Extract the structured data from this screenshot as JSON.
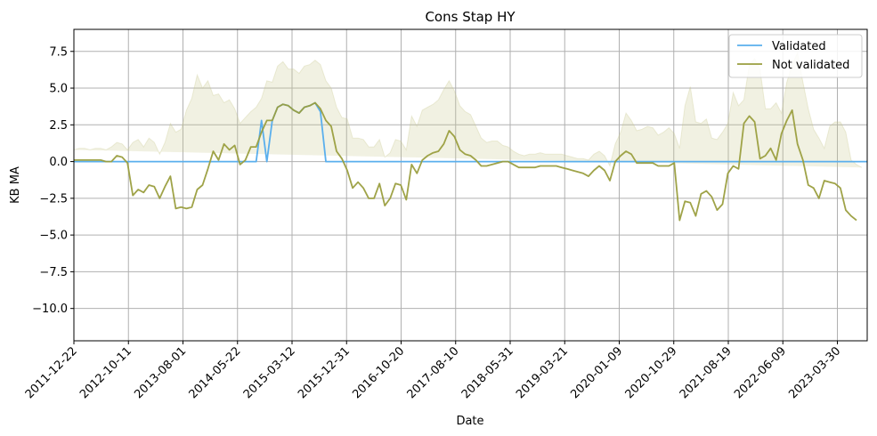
{
  "chart_data": {
    "type": "line",
    "title": "Cons Stap HY",
    "xlabel": "Date",
    "ylabel": "KB MA",
    "ylim": [
      -12.2,
      9.0
    ],
    "grid": true,
    "legend_position": "top-right",
    "yticks": [
      7.5,
      5.0,
      2.5,
      0.0,
      -2.5,
      -5.0,
      -7.5,
      -10.0
    ],
    "ytick_labels": [
      "7.5",
      "5.0",
      "2.5",
      "0.0",
      "−2.5",
      "−5.0",
      "−7.5",
      "−10.0"
    ],
    "xtick_labels": [
      "2011-12-22",
      "2012-10-11",
      "2013-08-01",
      "2014-05-22",
      "2015-03-12",
      "2015-12-31",
      "2016-10-20",
      "2017-08-10",
      "2018-05-31",
      "2019-03-21",
      "2020-01-09",
      "2020-10-29",
      "2021-08-19",
      "2022-06-09",
      "2023-03-30"
    ],
    "series": [
      {
        "name": "Validated",
        "color": "#5aafed",
        "values": [
          0,
          0,
          0,
          0,
          0,
          0,
          0,
          0,
          0,
          0,
          0,
          0,
          0,
          0,
          0,
          0,
          0,
          0,
          0,
          0,
          0,
          0,
          0,
          0,
          0,
          0,
          0,
          0,
          0,
          0,
          0,
          0,
          0,
          0,
          0,
          2.8,
          0,
          2.8,
          3.7,
          3.9,
          3.8,
          3.5,
          3.3,
          3.7,
          3.8,
          4.0,
          3.4,
          0,
          0,
          0,
          0,
          0,
          0,
          0,
          0,
          0,
          0,
          0,
          0,
          0,
          0,
          0,
          0,
          0,
          0,
          0,
          0,
          0,
          0,
          0,
          0,
          0,
          0,
          0,
          0,
          0,
          0,
          0,
          0,
          0,
          0,
          0,
          0,
          0,
          0,
          0,
          0,
          0,
          0,
          0,
          0,
          0,
          0,
          0,
          0,
          0,
          0,
          0,
          0,
          0,
          0,
          0,
          0,
          0,
          0,
          0,
          0,
          0,
          0,
          0,
          0,
          0,
          0,
          0,
          0,
          0,
          0,
          0,
          0,
          0,
          0,
          0,
          0,
          0,
          0,
          0,
          0,
          0,
          0,
          0,
          0,
          0,
          0,
          0,
          0,
          0,
          0,
          0,
          0,
          0,
          0,
          0,
          0,
          0,
          0,
          0,
          0,
          0,
          0
        ]
      },
      {
        "name": "Not validated",
        "color": "#9a9e3e",
        "values": [
          0.1,
          0.1,
          0.1,
          0.1,
          0.1,
          0.1,
          0.0,
          0.0,
          0.4,
          0.3,
          -0.1,
          -2.3,
          -1.9,
          -2.1,
          -1.6,
          -1.7,
          -2.5,
          -1.7,
          -1.0,
          -3.2,
          -3.1,
          -3.2,
          -3.1,
          -1.9,
          -1.6,
          -0.5,
          0.7,
          0.1,
          1.2,
          0.8,
          1.1,
          -0.2,
          0.1,
          1.0,
          1.0,
          2.0,
          2.8,
          2.8,
          3.7,
          3.9,
          3.8,
          3.5,
          3.3,
          3.7,
          3.8,
          4.0,
          3.6,
          2.8,
          2.4,
          0.7,
          0.2,
          -0.6,
          -1.8,
          -1.4,
          -1.8,
          -2.5,
          -2.5,
          -1.5,
          -3.0,
          -2.5,
          -1.5,
          -1.6,
          -2.6,
          -0.2,
          -0.8,
          0.1,
          0.4,
          0.6,
          0.7,
          1.2,
          2.1,
          1.7,
          0.8,
          0.5,
          0.4,
          0.1,
          -0.3,
          -0.3,
          -0.2,
          -0.1,
          0.0,
          0.0,
          -0.2,
          -0.4,
          -0.4,
          -0.4,
          -0.4,
          -0.3,
          -0.3,
          -0.3,
          -0.3,
          -0.4,
          -0.5,
          -0.6,
          -0.7,
          -0.8,
          -1.0,
          -0.6,
          -0.3,
          -0.6,
          -1.3,
          -0.0,
          0.4,
          0.7,
          0.5,
          -0.1,
          -0.1,
          -0.1,
          -0.1,
          -0.3,
          -0.3,
          -0.3,
          -0.1,
          -4.0,
          -2.7,
          -2.8,
          -3.7,
          -2.2,
          -2.0,
          -2.4,
          -3.3,
          -2.9,
          -0.8,
          -0.3,
          -0.5,
          2.6,
          3.1,
          2.7,
          0.2,
          0.4,
          0.9,
          0.1,
          1.9,
          2.8,
          3.5,
          1.2,
          0.1,
          -1.6,
          -1.8,
          -2.5,
          -1.3,
          -1.4,
          -1.5,
          -1.8,
          -3.3,
          -3.7,
          -4.0
        ]
      }
    ],
    "band": {
      "color": "#c8c88a",
      "upper": [
        0.8,
        0.9,
        0.9,
        0.8,
        0.9,
        0.9,
        0.8,
        1.0,
        1.3,
        1.2,
        0.8,
        1.3,
        1.5,
        1.0,
        1.6,
        1.3,
        0.5,
        1.3,
        2.6,
        2.0,
        2.2,
        3.5,
        4.3,
        5.9,
        5.0,
        5.5,
        4.5,
        4.6,
        4.0,
        4.2,
        3.6,
        2.6,
        3.0,
        3.4,
        3.7,
        4.3,
        5.5,
        5.4,
        6.5,
        6.8,
        6.3,
        6.3,
        6.0,
        6.5,
        6.6,
        6.9,
        6.6,
        5.5,
        5.0,
        3.7,
        3.0,
        2.9,
        1.6,
        1.6,
        1.5,
        1.0,
        1.0,
        1.5,
        0.3,
        0.6,
        1.5,
        1.4,
        0.8,
        3.1,
        2.4,
        3.5,
        3.7,
        3.9,
        4.2,
        4.9,
        5.5,
        4.8,
        3.8,
        3.4,
        3.2,
        2.4,
        1.6,
        1.3,
        1.4,
        1.4,
        1.1,
        1.0,
        0.7,
        0.5,
        0.4,
        0.5,
        0.5,
        0.6,
        0.5,
        0.5,
        0.5,
        0.5,
        0.4,
        0.3,
        0.2,
        0.2,
        0.1,
        0.5,
        0.7,
        0.4,
        -0.3,
        1.2,
        2.0,
        3.3,
        2.8,
        2.1,
        2.2,
        2.4,
        2.3,
        1.8,
        2.0,
        2.3,
        1.9,
        0.9,
        3.8,
        5.1,
        2.7,
        2.6,
        2.9,
        1.6,
        1.5,
        2.0,
        2.6,
        4.7,
        3.8,
        4.2,
        6.6,
        7.0,
        6.3,
        3.6,
        3.6,
        4.0,
        3.3,
        5.4,
        6.6,
        7.4,
        5.4,
        3.6,
        2.2,
        1.6,
        0.9,
        2.4,
        2.7,
        2.7,
        2.0,
        0.1,
        -0.2,
        -0.4
      ]
    }
  }
}
